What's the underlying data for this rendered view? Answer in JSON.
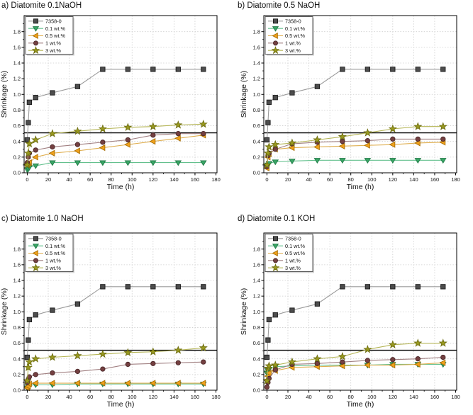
{
  "figure": {
    "background": "#ffffff"
  },
  "styles": {
    "grid_color": "#cdcdcd",
    "axis_color": "#000000",
    "refline_color": "#000000",
    "legend_border": "#595959",
    "legend_shadow": "#bfbfbf",
    "text_color": "#111111"
  },
  "chart_data": [
    {
      "id": "a",
      "type": "line",
      "title": "a) Diatomite 0.1NaOH",
      "xlabel": "Time (h)",
      "ylabel": "Shrinkage (%)",
      "xlim": [
        -3,
        181
      ],
      "ylim": [
        0,
        2.005
      ],
      "xticks": [
        0,
        20,
        40,
        60,
        80,
        100,
        120,
        140,
        160,
        180
      ],
      "yticks": [
        0.0,
        0.2,
        0.4,
        0.6,
        0.8,
        1.0,
        1.2,
        1.4,
        1.6,
        1.8
      ],
      "x_minor_step": 10,
      "y_minor_step": 0.1,
      "refline_y": 0.51,
      "grid": true,
      "legend_position": "top-left",
      "x": [
        0,
        1,
        2,
        8,
        24,
        48,
        72,
        96,
        120,
        144,
        168
      ],
      "series": [
        {
          "name": "7358-0",
          "marker": "square",
          "marker_color": "#4d4d4d",
          "marker_edge": "#1a1a1a",
          "line_color": "#9b9b9b",
          "values": [
            0.42,
            0.64,
            0.9,
            0.96,
            1.02,
            1.1,
            1.32,
            1.32,
            1.32,
            1.32,
            1.32
          ]
        },
        {
          "name": "0.1 wt.%",
          "marker": "triangle-down",
          "marker_color": "#3aa566",
          "marker_edge": "#1f7a45",
          "line_color": "#63c08d",
          "values": [
            0.04,
            0.05,
            0.07,
            0.09,
            0.13,
            0.13,
            0.13,
            0.13,
            0.13,
            0.13,
            0.13
          ]
        },
        {
          "name": "0.5 wt.%",
          "marker": "triangle-left",
          "marker_color": "#f0a11c",
          "marker_edge": "#a86f06",
          "line_color": "#dfae4f",
          "values": [
            0.1,
            0.12,
            0.13,
            0.2,
            0.25,
            0.28,
            0.32,
            0.36,
            0.4,
            0.44,
            0.48
          ]
        },
        {
          "name": "1 wt.%",
          "marker": "circle",
          "marker_color": "#744041",
          "marker_edge": "#4a2728",
          "line_color": "#a18082",
          "values": [
            0.13,
            0.2,
            0.25,
            0.29,
            0.33,
            0.36,
            0.39,
            0.42,
            0.48,
            0.5,
            0.5
          ]
        },
        {
          "name": "3 wt.%",
          "marker": "star",
          "marker_color": "#99991f",
          "marker_edge": "#6e6e10",
          "line_color": "#b5b556",
          "values": [
            0.1,
            0.25,
            0.37,
            0.42,
            0.5,
            0.53,
            0.56,
            0.58,
            0.59,
            0.61,
            0.62
          ]
        }
      ]
    },
    {
      "id": "b",
      "type": "line",
      "title": "b) Diatomite 0.5 NaOH",
      "xlabel": "Time (h)",
      "ylabel": "Shrinkage (%)",
      "xlim": [
        -3,
        181
      ],
      "ylim": [
        0,
        2.005
      ],
      "xticks": [
        0,
        20,
        40,
        60,
        80,
        100,
        120,
        140,
        160,
        180
      ],
      "yticks": [
        0.0,
        0.2,
        0.4,
        0.6,
        0.8,
        1.0,
        1.2,
        1.4,
        1.6,
        1.8
      ],
      "x_minor_step": 10,
      "y_minor_step": 0.1,
      "refline_y": 0.51,
      "grid": true,
      "legend_position": "top-left",
      "x": [
        0,
        1,
        2,
        8,
        24,
        48,
        72,
        96,
        120,
        144,
        168
      ],
      "series": [
        {
          "name": "7358-0",
          "marker": "square",
          "marker_color": "#4d4d4d",
          "marker_edge": "#1a1a1a",
          "line_color": "#9b9b9b",
          "values": [
            0.42,
            0.64,
            0.9,
            0.96,
            1.02,
            1.1,
            1.32,
            1.32,
            1.32,
            1.32,
            1.32
          ]
        },
        {
          "name": "0.1 wt.%",
          "marker": "triangle-down",
          "marker_color": "#3aa566",
          "marker_edge": "#1f7a45",
          "line_color": "#63c08d",
          "values": [
            0.08,
            0.1,
            0.12,
            0.14,
            0.15,
            0.16,
            0.16,
            0.16,
            0.16,
            0.16,
            0.16
          ]
        },
        {
          "name": "0.5 wt.%",
          "marker": "triangle-left",
          "marker_color": "#f0a11c",
          "marker_edge": "#a86f06",
          "line_color": "#dfae4f",
          "values": [
            0.06,
            0.2,
            0.24,
            0.3,
            0.32,
            0.33,
            0.34,
            0.35,
            0.36,
            0.38,
            0.39
          ]
        },
        {
          "name": "1 wt.%",
          "marker": "circle",
          "marker_color": "#744041",
          "marker_edge": "#4a2728",
          "line_color": "#a18082",
          "values": [
            0.08,
            0.22,
            0.25,
            0.3,
            0.37,
            0.39,
            0.4,
            0.41,
            0.43,
            0.43,
            0.43
          ]
        },
        {
          "name": "3 wt.%",
          "marker": "star",
          "marker_color": "#99991f",
          "marker_edge": "#6e6e10",
          "line_color": "#b5b556",
          "values": [
            0.1,
            0.25,
            0.33,
            0.36,
            0.38,
            0.42,
            0.46,
            0.51,
            0.56,
            0.59,
            0.59
          ]
        }
      ]
    },
    {
      "id": "c",
      "type": "line",
      "title": "c) Diatomite 1.0 NaOH",
      "xlabel": "Time (h)",
      "ylabel": "Shrinkage (%)",
      "xlim": [
        -3,
        181
      ],
      "ylim": [
        0,
        2.005
      ],
      "xticks": [
        0,
        20,
        40,
        60,
        80,
        100,
        120,
        140,
        160,
        180
      ],
      "yticks": [
        0.0,
        0.2,
        0.4,
        0.6,
        0.8,
        1.0,
        1.2,
        1.4,
        1.6,
        1.8
      ],
      "x_minor_step": 10,
      "y_minor_step": 0.1,
      "refline_y": 0.51,
      "grid": true,
      "legend_position": "top-left",
      "x": [
        0,
        1,
        2,
        8,
        24,
        48,
        72,
        96,
        120,
        144,
        168
      ],
      "series": [
        {
          "name": "7358-0",
          "marker": "square",
          "marker_color": "#4d4d4d",
          "marker_edge": "#1a1a1a",
          "line_color": "#9b9b9b",
          "values": [
            0.42,
            0.64,
            0.9,
            0.96,
            1.02,
            1.1,
            1.32,
            1.32,
            1.32,
            1.32,
            1.32
          ]
        },
        {
          "name": "0.1 wt.%",
          "marker": "triangle-down",
          "marker_color": "#3aa566",
          "marker_edge": "#1f7a45",
          "line_color": "#63c08d",
          "values": [
            0.03,
            0.05,
            0.06,
            0.07,
            0.07,
            0.08,
            0.08,
            0.08,
            0.08,
            0.08,
            0.08
          ]
        },
        {
          "name": "0.5 wt.%",
          "marker": "triangle-left",
          "marker_color": "#f0a11c",
          "marker_edge": "#a86f06",
          "line_color": "#dfae4f",
          "values": [
            0.03,
            0.05,
            0.08,
            0.09,
            0.09,
            0.09,
            0.09,
            0.09,
            0.09,
            0.09,
            0.09
          ]
        },
        {
          "name": "1 wt.%",
          "marker": "circle",
          "marker_color": "#744041",
          "marker_edge": "#4a2728",
          "line_color": "#a18082",
          "values": [
            0.1,
            0.14,
            0.17,
            0.2,
            0.22,
            0.24,
            0.27,
            0.33,
            0.34,
            0.35,
            0.36
          ]
        },
        {
          "name": "3 wt.%",
          "marker": "star",
          "marker_color": "#99991f",
          "marker_edge": "#6e6e10",
          "line_color": "#b5b556",
          "values": [
            0.12,
            0.29,
            0.36,
            0.4,
            0.42,
            0.44,
            0.46,
            0.48,
            0.49,
            0.51,
            0.54
          ]
        }
      ]
    },
    {
      "id": "d",
      "type": "line",
      "title": "d) Diatomite 0.1 KOH",
      "xlabel": "Time (h)",
      "ylabel": "Shrinkage (%)",
      "xlim": [
        -3,
        181
      ],
      "ylim": [
        0,
        2.005
      ],
      "xticks": [
        0,
        20,
        40,
        60,
        80,
        100,
        120,
        140,
        160,
        180
      ],
      "yticks": [
        0.0,
        0.2,
        0.4,
        0.6,
        0.8,
        1.0,
        1.2,
        1.4,
        1.6,
        1.8
      ],
      "x_minor_step": 10,
      "y_minor_step": 0.1,
      "refline_y": 0.51,
      "grid": true,
      "legend_position": "top-left",
      "x": [
        0,
        1,
        2,
        8,
        24,
        48,
        72,
        96,
        120,
        144,
        168
      ],
      "series": [
        {
          "name": "7358-0",
          "marker": "square",
          "marker_color": "#4d4d4d",
          "marker_edge": "#1a1a1a",
          "line_color": "#9b9b9b",
          "values": [
            0.42,
            0.64,
            0.9,
            0.96,
            1.02,
            1.1,
            1.32,
            1.32,
            1.32,
            1.32,
            1.32
          ]
        },
        {
          "name": "0.1 wt.%",
          "marker": "triangle-down",
          "marker_color": "#3aa566",
          "marker_edge": "#1f7a45",
          "line_color": "#63c08d",
          "values": [
            0.22,
            0.25,
            0.27,
            0.3,
            0.31,
            0.32,
            0.32,
            0.32,
            0.33,
            0.33,
            0.33
          ]
        },
        {
          "name": "0.5 wt.%",
          "marker": "triangle-left",
          "marker_color": "#f0a11c",
          "marker_edge": "#a86f06",
          "line_color": "#dfae4f",
          "values": [
            0.13,
            0.18,
            0.22,
            0.25,
            0.29,
            0.3,
            0.31,
            0.32,
            0.32,
            0.33,
            0.35
          ]
        },
        {
          "name": "1 wt.%",
          "marker": "circle",
          "marker_color": "#744041",
          "marker_edge": "#4a2728",
          "line_color": "#a18082",
          "values": [
            0.04,
            0.1,
            0.15,
            0.26,
            0.33,
            0.34,
            0.36,
            0.38,
            0.39,
            0.4,
            0.42
          ]
        },
        {
          "name": "3 wt.%",
          "marker": "star",
          "marker_color": "#99991f",
          "marker_edge": "#6e6e10",
          "line_color": "#b5b556",
          "values": [
            0.12,
            0.28,
            0.31,
            0.32,
            0.36,
            0.4,
            0.43,
            0.52,
            0.58,
            0.6,
            0.6
          ]
        }
      ]
    }
  ]
}
